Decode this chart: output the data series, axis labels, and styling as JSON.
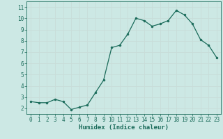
{
  "x": [
    0,
    1,
    2,
    3,
    4,
    5,
    6,
    7,
    8,
    9,
    10,
    11,
    12,
    13,
    14,
    15,
    16,
    17,
    18,
    19,
    20,
    21,
    22,
    23
  ],
  "y": [
    2.6,
    2.5,
    2.5,
    2.8,
    2.6,
    1.9,
    2.1,
    2.3,
    3.4,
    4.5,
    7.4,
    7.6,
    8.6,
    10.0,
    9.8,
    9.3,
    9.5,
    9.8,
    10.7,
    10.3,
    9.5,
    8.1,
    7.6,
    6.5
  ],
  "xlabel": "Humidex (Indice chaleur)",
  "ylim": [
    1.5,
    11.5
  ],
  "xlim": [
    -0.5,
    23.5
  ],
  "yticks": [
    2,
    3,
    4,
    5,
    6,
    7,
    8,
    9,
    10,
    11
  ],
  "xticks": [
    0,
    1,
    2,
    3,
    4,
    5,
    6,
    7,
    8,
    9,
    10,
    11,
    12,
    13,
    14,
    15,
    16,
    17,
    18,
    19,
    20,
    21,
    22,
    23
  ],
  "line_color": "#1a6b5a",
  "bg_color": "#cce8e4",
  "grid_color": "#c8ddd9",
  "tick_color": "#1a6b5a",
  "label_color": "#1a6b5a",
  "marker": "o",
  "markersize": 2.0,
  "linewidth": 0.9,
  "xlabel_fontsize": 6.5,
  "tick_fontsize": 5.5
}
